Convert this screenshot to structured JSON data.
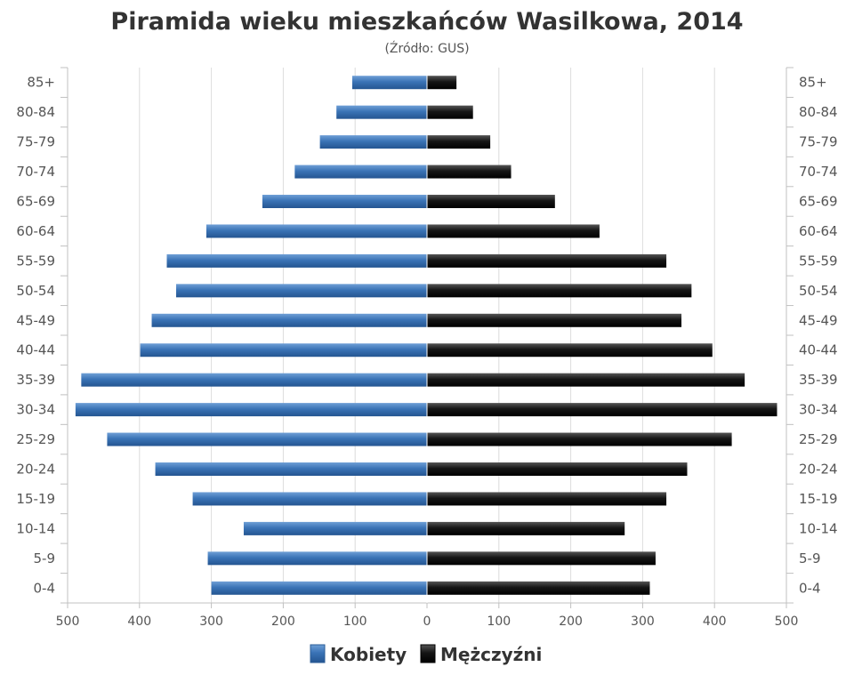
{
  "chart_data": {
    "type": "bar",
    "orientation": "horizontal",
    "layout": "population-pyramid",
    "title": "Piramida wieku mieszkańców Wasilkowa, 2014",
    "subtitle": "(Źródło: GUS)",
    "categories": [
      "85+",
      "80-84",
      "75-79",
      "70-74",
      "65-69",
      "60-64",
      "55-59",
      "50-54",
      "45-49",
      "40-44",
      "35-39",
      "30-34",
      "25-29",
      "20-24",
      "15-19",
      "10-14",
      "5-9",
      "0-4"
    ],
    "series": [
      {
        "name": "Kobiety",
        "side": "left",
        "color": "#3a73b6",
        "values": [
          104,
          126,
          149,
          184,
          229,
          307,
          362,
          349,
          383,
          399,
          481,
          489,
          445,
          378,
          326,
          255,
          305,
          300
        ]
      },
      {
        "name": "Mężczyźni",
        "side": "right",
        "color": "#151515",
        "values": [
          41,
          64,
          88,
          117,
          178,
          240,
          333,
          368,
          354,
          397,
          442,
          487,
          424,
          362,
          333,
          275,
          318,
          310
        ]
      }
    ],
    "xlim": [
      -500,
      500
    ],
    "xticks": [
      "500",
      "400",
      "300",
      "200",
      "100",
      "0",
      "100",
      "200",
      "300",
      "400",
      "500"
    ],
    "grid": true,
    "legend_position": "bottom-center"
  }
}
